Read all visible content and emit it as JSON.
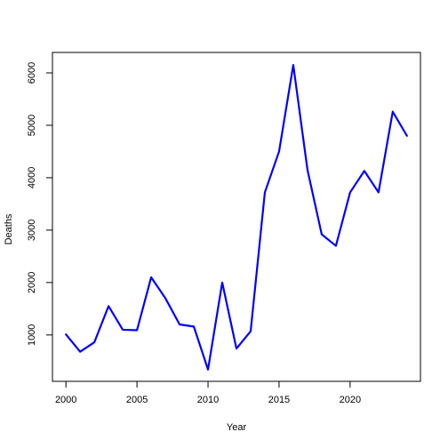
{
  "chart_data": {
    "type": "line",
    "title": "",
    "xlabel": "Year",
    "ylabel": "Deaths",
    "xlim": [
      1999.05,
      2024.95
    ],
    "ylim": [
      115,
      6390
    ],
    "x_ticks": [
      2000,
      2005,
      2010,
      2015,
      2020
    ],
    "x_tick_labels": [
      "2000",
      "2005",
      "2010",
      "2015",
      "2020"
    ],
    "y_ticks": [
      1000,
      2000,
      3000,
      4000,
      5000,
      6000
    ],
    "y_tick_labels": [
      "1000",
      "2000",
      "3000",
      "4000",
      "5000",
      "6000"
    ],
    "grid": false,
    "legend": "none",
    "colors": {
      "line": "#0000ff",
      "axis": "#000000",
      "background": "#ffffff"
    },
    "series": [
      {
        "x": [
          2000,
          2001,
          2002,
          2003,
          2004,
          2005,
          2006,
          2007,
          2008,
          2009,
          2010,
          2011,
          2012,
          2013,
          2014,
          2015,
          2016,
          2017,
          2018,
          2019,
          2020,
          2021,
          2022,
          2023,
          2024
        ],
        "values": [
          1010,
          680,
          860,
          1550,
          1100,
          1090,
          2100,
          1700,
          1200,
          1160,
          340,
          2000,
          740,
          1070,
          3720,
          4500,
          6150,
          4150,
          2920,
          2700,
          3720,
          4130,
          3720,
          5260,
          4800
        ]
      }
    ]
  }
}
